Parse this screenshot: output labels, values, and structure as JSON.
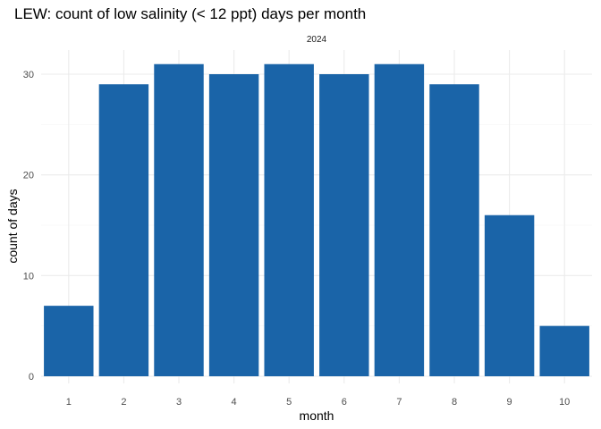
{
  "chart_data": {
    "type": "bar",
    "title": "LEW: count of low salinity (< 12 ppt) days per month",
    "facet_label": "2024",
    "xlabel": "month",
    "ylabel": "count of days",
    "categories": [
      "1",
      "2",
      "3",
      "4",
      "5",
      "6",
      "7",
      "8",
      "9",
      "10"
    ],
    "values": [
      7,
      29,
      31,
      30,
      31,
      30,
      31,
      29,
      16,
      5
    ],
    "ylim": [
      0,
      32.5
    ],
    "yticks": [
      0,
      10,
      20,
      30
    ],
    "grid": true,
    "legend": "none",
    "bar_color": "#1a64a8"
  }
}
